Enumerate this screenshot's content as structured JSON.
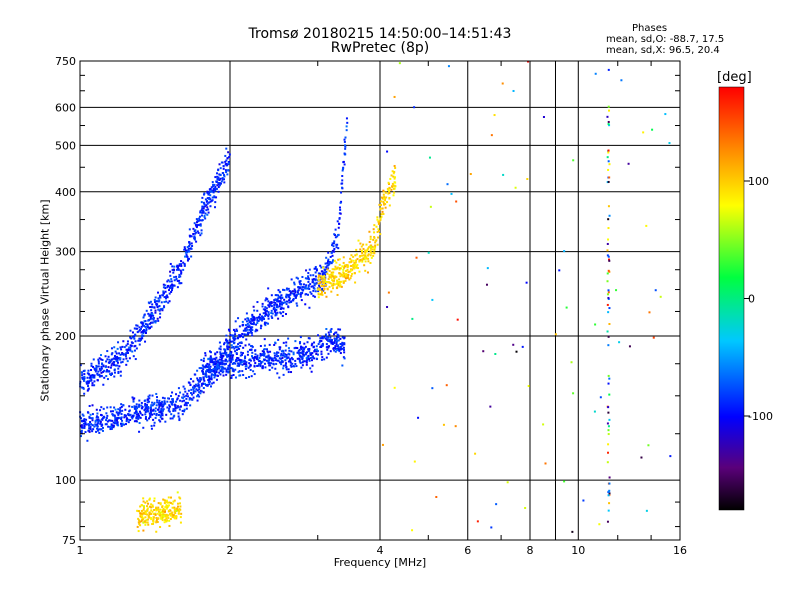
{
  "chart_data": {
    "type": "scatter",
    "title": "Tromsø 20180215 14:50:00–14:51:43",
    "subtitle": "RwPretec (8p)",
    "xlabel": "Frequency [MHz]",
    "ylabel": "Stationary phase Virtual Height [km]",
    "xscale": "log",
    "yscale": "log",
    "xlim": [
      1,
      16
    ],
    "ylim": [
      75,
      750
    ],
    "x_ticks": [
      1,
      2,
      4,
      6,
      8,
      10,
      16
    ],
    "y_ticks": [
      75,
      100,
      200,
      300,
      400,
      500,
      600,
      750
    ],
    "grid": true,
    "phase_stats": {
      "header": "Phases",
      "line_o": "mean, sd,O: -88.7, 17.5",
      "line_x": "mean, sd,X:  96.5, 20.4"
    },
    "colorbar": {
      "label": "[deg]",
      "range": [
        -180,
        180
      ],
      "ticks": [
        -100,
        0,
        100
      ],
      "colormap": "rainbow"
    },
    "series": [
      {
        "name": "O",
        "phase_mean": -88.7,
        "phase_sd": 17.5,
        "traces": [
          {
            "f": [
              1.0,
              1.3,
              1.6,
              1.8,
              2.0,
              2.3,
              2.6,
              2.9,
              3.1,
              3.3,
              3.45
            ],
            "h": [
              130,
              138,
              145,
              165,
              190,
              220,
              240,
              255,
              270,
              330,
              600
            ]
          },
          {
            "f": [
              1.0,
              1.2,
              1.4,
              1.6,
              1.8,
              2.0
            ],
            "h": [
              160,
              180,
              220,
              280,
              380,
              470
            ]
          },
          {
            "f": [
              1.75,
              2.0,
              2.3,
              2.6,
              2.9,
              3.2,
              3.4
            ],
            "h": [
              170,
              175,
              180,
              180,
              185,
              195,
              190
            ]
          }
        ]
      },
      {
        "name": "X",
        "phase_mean": 96.5,
        "phase_sd": 20.4,
        "traces": [
          {
            "f": [
              3.0,
              3.2,
              3.4,
              3.6,
              3.8,
              3.95,
              4.05,
              4.3
            ],
            "h": [
              255,
              262,
              270,
              285,
              300,
              330,
              380,
              430
            ]
          },
          {
            "f": [
              1.3,
              1.4,
              1.5,
              1.6
            ],
            "h": [
              84,
              85,
              86,
              88
            ]
          }
        ]
      },
      {
        "name": "noise",
        "traces": [
          {
            "f": [
              11.5,
              11.5,
              11.5,
              11.5,
              11.5,
              11.5,
              11.5
            ],
            "h": [
              620,
              520,
              400,
              300,
              220,
              150,
              85
            ]
          }
        ]
      }
    ]
  }
}
